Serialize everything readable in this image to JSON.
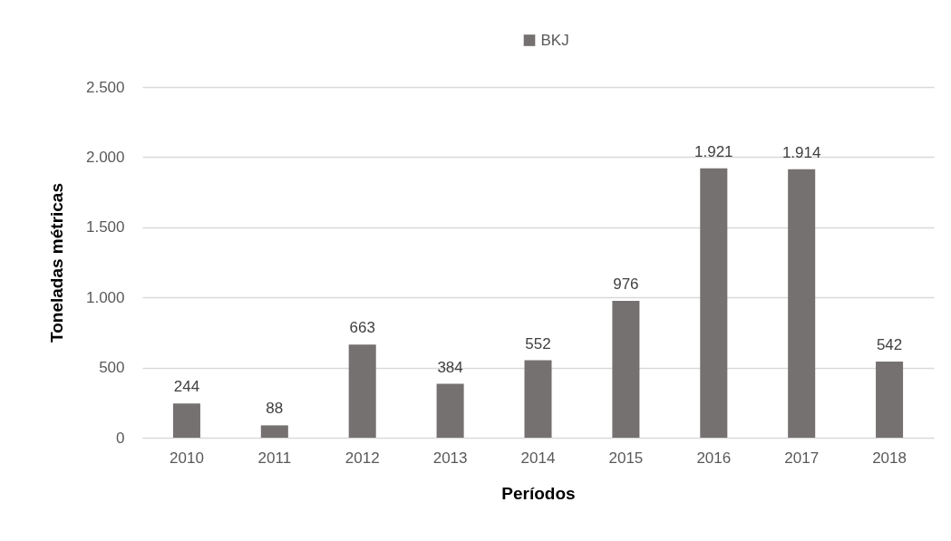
{
  "chart_data": {
    "type": "bar",
    "categories": [
      "2010",
      "2011",
      "2012",
      "2013",
      "2014",
      "2015",
      "2016",
      "2017",
      "2018"
    ],
    "series": [
      {
        "name": "BKJ",
        "color": "#767171",
        "values": [
          244,
          88,
          663,
          384,
          552,
          976,
          1921,
          1914,
          542
        ],
        "value_labels": [
          "244",
          "88",
          "663",
          "384",
          "552",
          "976",
          "1.921",
          "1.914",
          "542"
        ]
      }
    ],
    "xlabel": "Períodos",
    "ylabel": "Toneladas métricas",
    "ylim": [
      0,
      2500
    ],
    "yticks": [
      0,
      500,
      {
        "value": 1000,
        "label": "1.000"
      },
      {
        "value": 1500,
        "label": "1.500"
      },
      {
        "value": 2000,
        "label": "2.000"
      },
      {
        "value": 2500,
        "label": "2.500"
      }
    ],
    "grid": "y",
    "legend": "top"
  }
}
